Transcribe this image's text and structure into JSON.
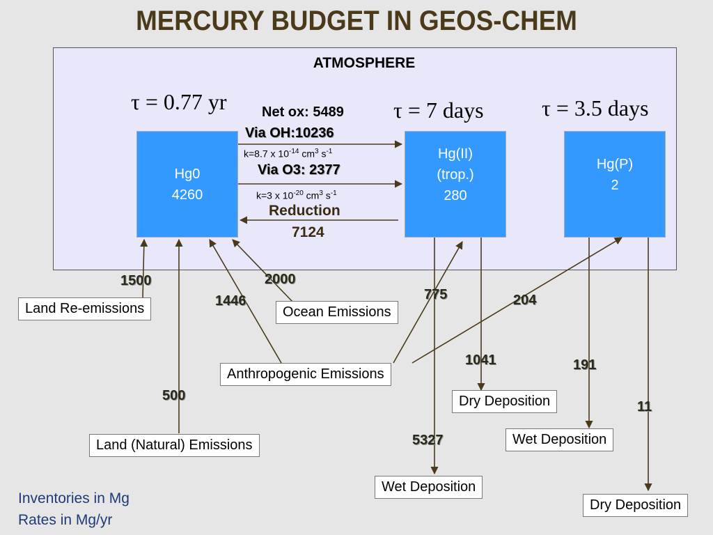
{
  "title": "MERCURY BUDGET IN GEOS-CHEM",
  "atmosphere": {
    "label": "ATMOSPHERE",
    "tau_hg0": "τ = 0.77 yr",
    "tau_hgii": "τ = 7 days",
    "tau_hgp": "τ = 3.5 days"
  },
  "boxes": {
    "hg0": {
      "name": "Hg0",
      "value": "4260"
    },
    "hgii": {
      "name": "Hg(II)",
      "sub": "(trop.)",
      "value": "280"
    },
    "hgp": {
      "name": "Hg(P)",
      "value": "2"
    }
  },
  "oxidation": {
    "net_ox": "Net ox: 5489",
    "via_oh": "Via OH:10236",
    "k_oh": {
      "prefix": "k=8.7 x 10",
      "exp": "-14",
      "unit": " cm",
      "unit_exp": "3",
      "tail": " s",
      "tail_exp": "-1"
    },
    "via_o3": "Via O3: 2377",
    "k_o3": {
      "prefix": "k=3 x 10",
      "exp": "-20",
      "unit": " cm",
      "unit_exp": "3",
      "tail": " s",
      "tail_exp": "-1"
    },
    "reduction": "Reduction",
    "reduction_value": "7124"
  },
  "sources": {
    "land_reemissions": "Land Re-emissions",
    "ocean_emissions": "Ocean Emissions",
    "anthropogenic_emissions": "Anthropogenic Emissions",
    "land_natural_emissions": "Land (Natural) Emissions"
  },
  "sinks": {
    "dry_deposition_ii": "Dry Deposition",
    "wet_deposition_p": "Wet Deposition",
    "wet_deposition_ii": "Wet Deposition",
    "dry_deposition_p": "Dry Deposition"
  },
  "flux_values": {
    "land_reemission": "1500",
    "ocean": "2000",
    "anthro_hg0": "1446",
    "anthro_hgii": "775",
    "anthro_hgp": "204",
    "dry_dep_ii": "1041",
    "wet_dep_p": "191",
    "land_natural": "500",
    "dry_dep_p": "11",
    "wet_dep_ii": "5327"
  },
  "notes": {
    "line1": "Inventories in Mg",
    "line2": "Rates in Mg/yr"
  },
  "colors": {
    "background": "#e6e6e6",
    "atmosphere_fill": "#e8e8fa",
    "box_fill": "#3399ff",
    "title": "#4a3a1a",
    "arrow": "#4a3a1a",
    "note": "#1f3a78"
  }
}
